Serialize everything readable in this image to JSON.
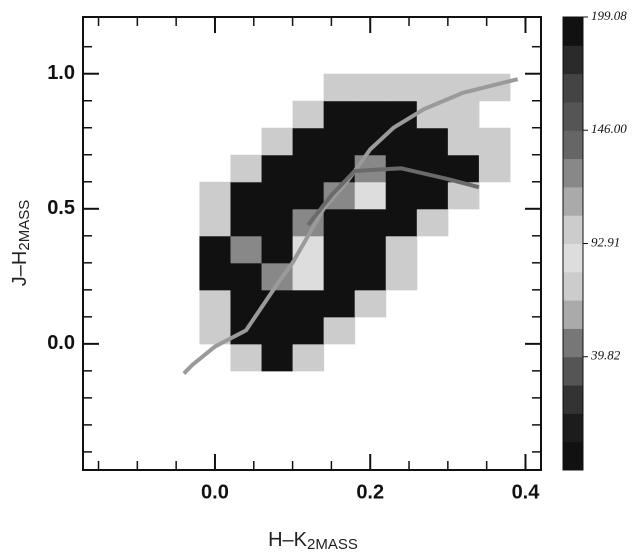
{
  "chart_data": {
    "type": "heatmap",
    "xlabel": "H–K",
    "xlabel_sub": "2MASS",
    "ylabel": "J–H",
    "ylabel_sub": "2MASS",
    "xlim": [
      -0.17,
      0.42
    ],
    "ylim": [
      -0.467,
      1.21
    ],
    "xticks": [
      {
        "value": 0.0,
        "label": "0.0"
      },
      {
        "value": 0.2,
        "label": "0.2"
      },
      {
        "value": 0.4,
        "label": "0.4"
      }
    ],
    "yticks": [
      {
        "value": 0.0,
        "label": "0.0"
      },
      0.5,
      {
        "value": 1.0,
        "label": "1.0"
      }
    ],
    "xminorticks": [
      -0.15,
      -0.1,
      -0.05,
      0.05,
      0.1,
      0.15,
      0.25,
      0.3,
      0.35
    ],
    "yminorticks": [
      -0.4,
      -0.3,
      -0.2,
      -0.1,
      0.1,
      0.2,
      0.3,
      0.4,
      0.6,
      0.7,
      0.8,
      0.9,
      1.1
    ],
    "xbins": [
      -0.06,
      -0.02,
      0.02,
      0.06,
      0.1,
      0.14,
      0.18,
      0.22,
      0.26,
      0.3,
      0.34,
      0.38
    ],
    "ybins": [
      -0.2,
      -0.1,
      0.0,
      0.1,
      0.2,
      0.3,
      0.4,
      0.5,
      0.6,
      0.7,
      0.8,
      0.9,
      1.0,
      1.1
    ],
    "z": [
      [
        null,
        null,
        null,
        null,
        null,
        null,
        null,
        null,
        null,
        null,
        null
      ],
      [
        null,
        null,
        100,
        190,
        100,
        null,
        null,
        null,
        null,
        null,
        null
      ],
      [
        null,
        100,
        195,
        195,
        195,
        100,
        null,
        null,
        null,
        null,
        null
      ],
      [
        null,
        100,
        195,
        195,
        195,
        195,
        100,
        null,
        null,
        null,
        null
      ],
      [
        null,
        195,
        195,
        120,
        80,
        195,
        195,
        100,
        null,
        null,
        null
      ],
      [
        null,
        195,
        120,
        195,
        90,
        195,
        195,
        100,
        null,
        null,
        null
      ],
      [
        null,
        100,
        195,
        195,
        120,
        195,
        195,
        195,
        100,
        null,
        null
      ],
      [
        null,
        100,
        195,
        195,
        195,
        120,
        80,
        195,
        195,
        100,
        null
      ],
      [
        null,
        null,
        100,
        195,
        195,
        195,
        120,
        195,
        195,
        195,
        100
      ],
      [
        null,
        null,
        null,
        100,
        195,
        195,
        195,
        195,
        195,
        100,
        100
      ],
      [
        null,
        null,
        null,
        null,
        100,
        195,
        195,
        195,
        100,
        100,
        null
      ],
      [
        null,
        null,
        null,
        null,
        null,
        100,
        100,
        100,
        100,
        100,
        100
      ],
      [
        null,
        null,
        null,
        null,
        null,
        null,
        null,
        null,
        null,
        null,
        null
      ]
    ],
    "lines": [
      {
        "color": "#9a9a9a",
        "x": [
          -0.04,
          -0.03,
          0.0,
          0.04,
          0.08,
          0.1,
          0.12,
          0.14,
          0.17,
          0.2,
          0.23,
          0.27,
          0.32,
          0.39
        ],
        "y": [
          -0.11,
          -0.08,
          -0.01,
          0.05,
          0.22,
          0.3,
          0.4,
          0.5,
          0.6,
          0.72,
          0.8,
          0.87,
          0.93,
          0.98
        ]
      },
      {
        "color": "#6a6a6a",
        "x": [
          0.12,
          0.15,
          0.18,
          0.24,
          0.3,
          0.34
        ],
        "y": [
          0.44,
          0.55,
          0.64,
          0.65,
          0.61,
          0.58
        ]
      }
    ],
    "colorbar": {
      "lim": [
        -13.27,
        199.08
      ],
      "colors": [
        "#111111",
        "#1c1c1c",
        "#333333",
        "#555555",
        "#777777",
        "#aaaaaa",
        "#cccccc",
        "#dddddd",
        "#cccccc",
        "#aaaaaa",
        "#888888",
        "#666666",
        "#555555",
        "#444444",
        "#2a2a2a",
        "#111111"
      ],
      "ticks": [
        {
          "value": 199.08,
          "label": "199.08"
        },
        {
          "value": 146.0,
          "label": "146.00"
        },
        {
          "value": 92.91,
          "label": "92.91"
        },
        {
          "value": 39.82,
          "label": "39.82"
        }
      ]
    }
  }
}
